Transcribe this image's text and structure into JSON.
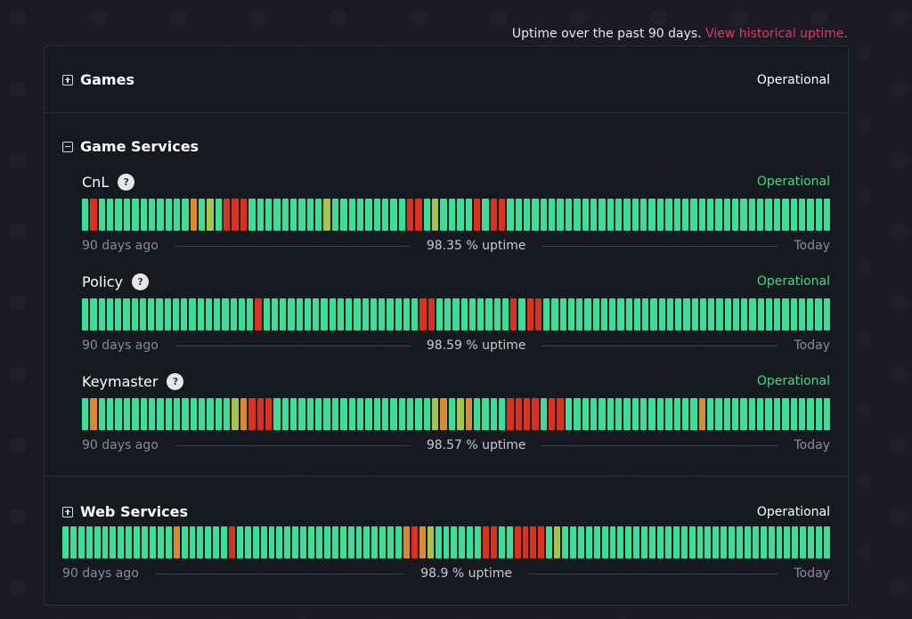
{
  "header": {
    "text": "Uptime over the past 90 days.",
    "link": "View historical uptime."
  },
  "groups": [
    {
      "name": "Games",
      "status": "Operational",
      "expanded": false
    },
    {
      "name": "Game Services",
      "expanded": true,
      "components": [
        {
          "name": "CnL",
          "status": "Operational",
          "uptime": "98.35 % uptime",
          "start": "90 days ago",
          "end": "Today",
          "bars": "grgggggggggggogygrrrgggggggggygggggggggrrgyggggrgrrggggggggggggggggggggggggggggggggggggggg"
        },
        {
          "name": "Policy",
          "status": "Operational",
          "uptime": "98.59 % uptime",
          "start": "90 days ago",
          "end": "Today",
          "bars": "gggggggggggggggggggggrgggggggggggggggggggrrgggggggggrgrrggggggggggggggggggggggggggggggggggg"
        },
        {
          "name": "Keymaster",
          "status": "Operational",
          "uptime": "98.57 % uptime",
          "start": "90 days ago",
          "end": "Today",
          "bars": "goggggggggggggggggyorrrgggggggggggggggggggyogyoggggrrrrgrrggggggggggggggggoggggggggggggggg"
        }
      ]
    },
    {
      "name": "Web Services",
      "status": "Operational",
      "expanded": false,
      "uptime": "98.9 % uptime",
      "start": "90 days ago",
      "end": "Today",
      "bars": "ggggggggggggggoggggggrgggggggggggggggggggggoroyggggggrrggrrrrgygggggggggggggggggggggggggggggggggg"
    }
  ],
  "colors": {
    "green": "#3ddc97",
    "yellow": "#a8c34a",
    "orange": "#d98a2c",
    "red": "#d9331f",
    "link": "#e8365d",
    "operational": "#3ddc84"
  }
}
